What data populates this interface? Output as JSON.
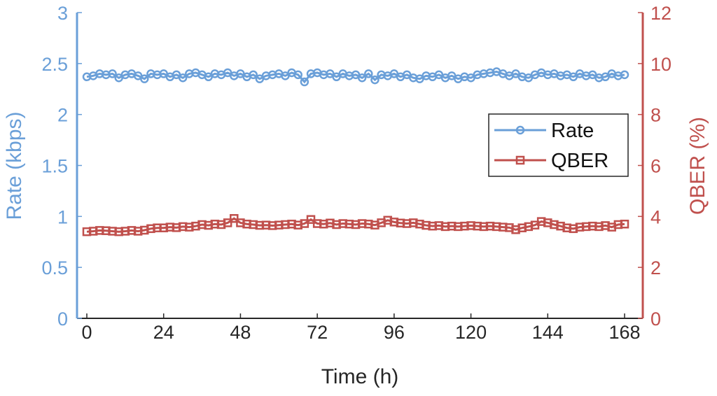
{
  "chart_data": {
    "type": "line",
    "xlabel": "Time (h)",
    "ylabel_left": "Rate (kbps)",
    "ylabel_right": "QBER (%)",
    "xlim": [
      0,
      168
    ],
    "ylim_left": [
      0,
      3
    ],
    "ylim_right": [
      0,
      12
    ],
    "xticks": [
      "0",
      "24",
      "48",
      "72",
      "96",
      "120",
      "144",
      "168"
    ],
    "yticks_left": [
      "0",
      "0.5",
      "1",
      "1.5",
      "2",
      "2.5",
      "3"
    ],
    "yticks_right": [
      "0",
      "2",
      "4",
      "6",
      "8",
      "10",
      "12"
    ],
    "grid": false,
    "legend_position": "center-right",
    "colors": {
      "rate": "#6a9fd8",
      "qber": "#c0504d",
      "axis": "#262626"
    },
    "x": [
      0,
      2,
      4,
      6,
      8,
      10,
      12,
      14,
      16,
      18,
      20,
      22,
      24,
      26,
      28,
      30,
      32,
      34,
      36,
      38,
      40,
      42,
      44,
      46,
      48,
      50,
      52,
      54,
      56,
      58,
      60,
      62,
      64,
      66,
      68,
      70,
      72,
      74,
      76,
      78,
      80,
      82,
      84,
      86,
      88,
      90,
      92,
      94,
      96,
      98,
      100,
      102,
      104,
      106,
      108,
      110,
      112,
      114,
      116,
      118,
      120,
      122,
      124,
      126,
      128,
      130,
      132,
      134,
      136,
      138,
      140,
      142,
      144,
      146,
      148,
      150,
      152,
      154,
      156,
      158,
      160,
      162,
      164,
      166,
      168
    ],
    "series": [
      {
        "name": "Rate",
        "axis": "left",
        "marker": "circle",
        "values": [
          2.37,
          2.38,
          2.4,
          2.39,
          2.4,
          2.36,
          2.39,
          2.4,
          2.38,
          2.35,
          2.4,
          2.39,
          2.4,
          2.37,
          2.39,
          2.36,
          2.4,
          2.41,
          2.39,
          2.37,
          2.4,
          2.39,
          2.41,
          2.38,
          2.4,
          2.37,
          2.39,
          2.35,
          2.38,
          2.39,
          2.4,
          2.38,
          2.41,
          2.39,
          2.32,
          2.4,
          2.41,
          2.39,
          2.4,
          2.37,
          2.4,
          2.38,
          2.39,
          2.36,
          2.4,
          2.34,
          2.39,
          2.38,
          2.4,
          2.37,
          2.39,
          2.36,
          2.35,
          2.38,
          2.37,
          2.39,
          2.36,
          2.38,
          2.35,
          2.37,
          2.36,
          2.39,
          2.4,
          2.41,
          2.42,
          2.4,
          2.38,
          2.4,
          2.37,
          2.36,
          2.39,
          2.41,
          2.39,
          2.4,
          2.38,
          2.39,
          2.37,
          2.4,
          2.38,
          2.39,
          2.36,
          2.37,
          2.4,
          2.38,
          2.39
        ]
      },
      {
        "name": "QBER",
        "axis": "right",
        "marker": "square",
        "values": [
          3.4,
          3.42,
          3.45,
          3.44,
          3.42,
          3.4,
          3.42,
          3.45,
          3.42,
          3.46,
          3.52,
          3.55,
          3.55,
          3.58,
          3.56,
          3.6,
          3.58,
          3.62,
          3.68,
          3.65,
          3.7,
          3.68,
          3.75,
          3.92,
          3.75,
          3.7,
          3.68,
          3.65,
          3.66,
          3.64,
          3.66,
          3.68,
          3.7,
          3.66,
          3.72,
          3.88,
          3.72,
          3.7,
          3.74,
          3.68,
          3.72,
          3.7,
          3.68,
          3.72,
          3.7,
          3.66,
          3.75,
          3.85,
          3.78,
          3.74,
          3.72,
          3.75,
          3.7,
          3.65,
          3.62,
          3.64,
          3.6,
          3.62,
          3.6,
          3.62,
          3.64,
          3.62,
          3.6,
          3.62,
          3.6,
          3.58,
          3.56,
          3.48,
          3.55,
          3.6,
          3.66,
          3.8,
          3.75,
          3.68,
          3.62,
          3.55,
          3.52,
          3.58,
          3.6,
          3.62,
          3.6,
          3.64,
          3.58,
          3.68,
          3.7
        ]
      }
    ]
  }
}
